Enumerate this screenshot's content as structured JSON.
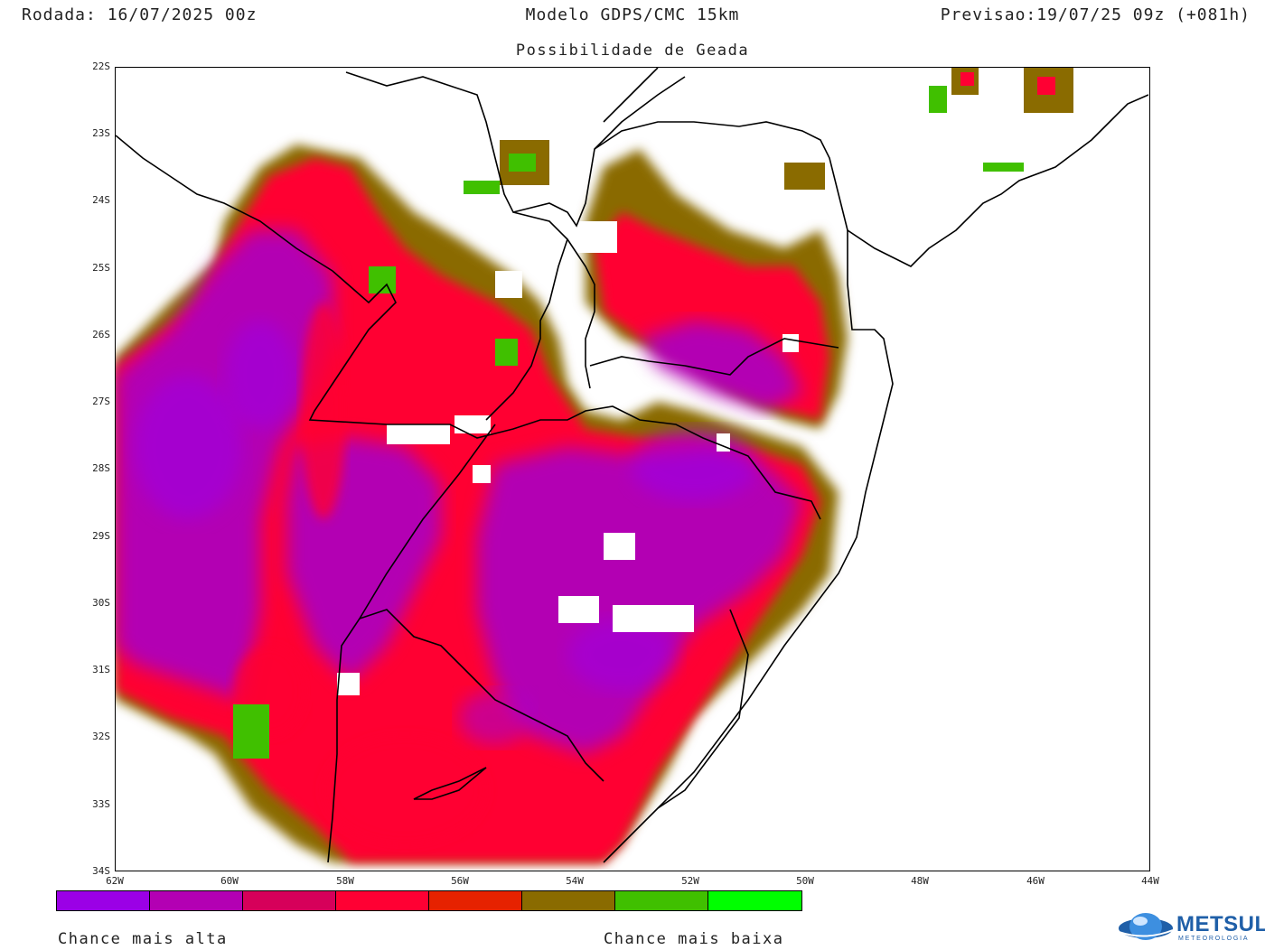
{
  "header": {
    "run": "Rodada: 16/07/2025 00z",
    "model": "Modelo GDPS/CMC 15km",
    "forecast": "Previsao:19/07/25 09z (+081h)"
  },
  "subtitle": "Possibilidade de Geada",
  "map": {
    "lat_labels": [
      "22S",
      "23S",
      "24S",
      "25S",
      "26S",
      "27S",
      "28S",
      "29S",
      "30S",
      "31S",
      "32S",
      "33S",
      "34S"
    ],
    "lon_labels": [
      "62W",
      "60W",
      "58W",
      "56W",
      "54W",
      "52W",
      "50W",
      "48W",
      "46W",
      "44W"
    ],
    "extent": {
      "lon_min": -62,
      "lon_max": -44,
      "lat_min": -34,
      "lat_max": -22
    }
  },
  "legend": {
    "colors": [
      "#9b00e6",
      "#b300b3",
      "#d6005a",
      "#ff0033",
      "#e62200",
      "#8a6b00",
      "#40c000",
      "#00ff00"
    ],
    "left_label": "Chance mais alta",
    "right_label": "Chance mais baixa"
  },
  "logo": {
    "name": "METSUL",
    "sub": "METEOROLOGIA"
  }
}
